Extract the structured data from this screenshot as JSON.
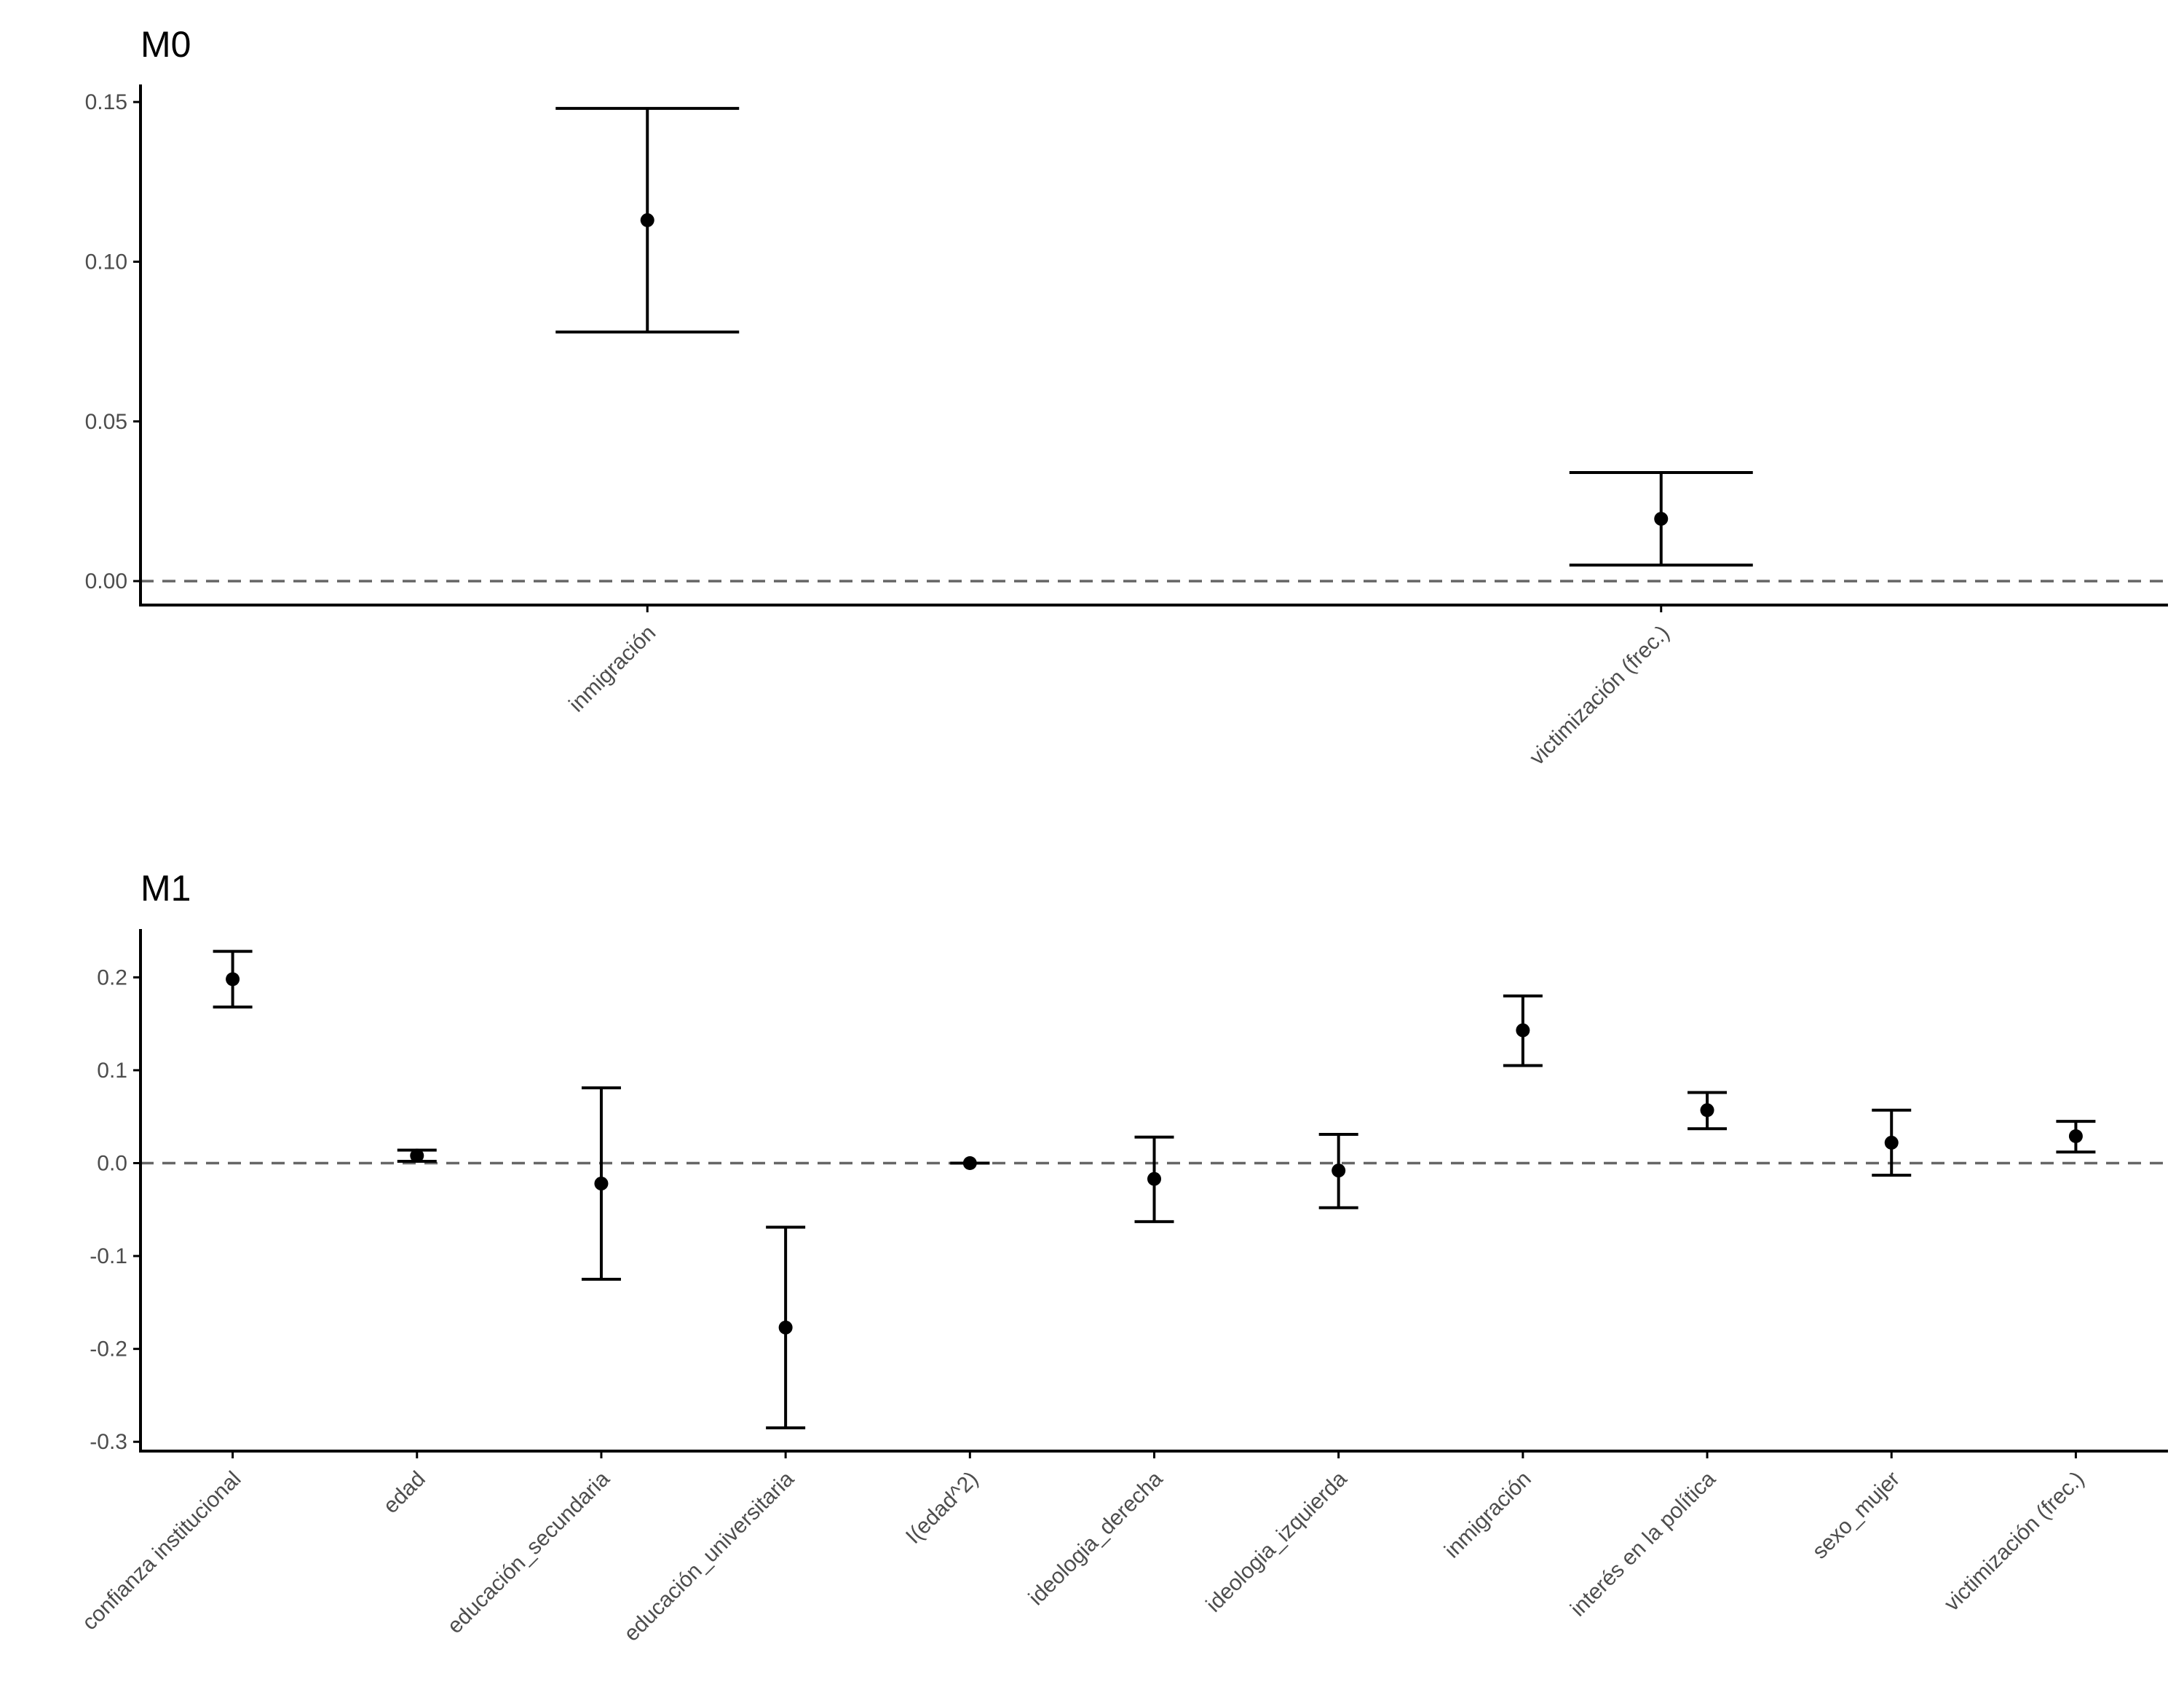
{
  "chart_data": [
    {
      "type": "errorbar",
      "title": "M0",
      "xlabel": "",
      "ylabel": "",
      "categories": [
        "inmigración",
        "victimización (frec.)"
      ],
      "estimate": [
        0.113,
        0.0195
      ],
      "lower": [
        0.078,
        0.005
      ],
      "upper": [
        0.148,
        0.034
      ],
      "ylim": [
        -0.0075,
        0.1555
      ],
      "yticks": [
        0.0,
        0.05,
        0.1,
        0.15
      ],
      "ytick_labels": [
        "0.00",
        "0.05",
        "0.10",
        "0.15"
      ],
      "reference_line": 0,
      "grid": false
    },
    {
      "type": "errorbar",
      "title": "M1",
      "xlabel": "",
      "ylabel": "",
      "categories": [
        "confianza institucional",
        "edad",
        "educación_secundaria",
        "educación_universitaria",
        "I(edad^2)",
        "ideologia_derecha",
        "ideologia_izquierda",
        "inmigración",
        "interés en la política",
        "sexo_mujer",
        "victimización (frec.)"
      ],
      "estimate": [
        0.198,
        0.008,
        -0.022,
        -0.177,
        0.0,
        -0.017,
        -0.008,
        0.143,
        0.057,
        0.022,
        0.029
      ],
      "lower": [
        0.168,
        0.002,
        -0.125,
        -0.285,
        0.0,
        -0.063,
        -0.048,
        0.105,
        0.037,
        -0.013,
        0.012
      ],
      "upper": [
        0.228,
        0.014,
        0.081,
        -0.069,
        0.0,
        0.028,
        0.031,
        0.18,
        0.076,
        0.057,
        0.045
      ],
      "ylim": [
        -0.31,
        0.252
      ],
      "yticks": [
        -0.3,
        -0.2,
        -0.1,
        0.0,
        0.1,
        0.2
      ],
      "ytick_labels": [
        "-0.3",
        "-0.2",
        "-0.1",
        "0.0",
        "0.1",
        "0.2"
      ],
      "reference_line": 0,
      "grid": false
    }
  ]
}
